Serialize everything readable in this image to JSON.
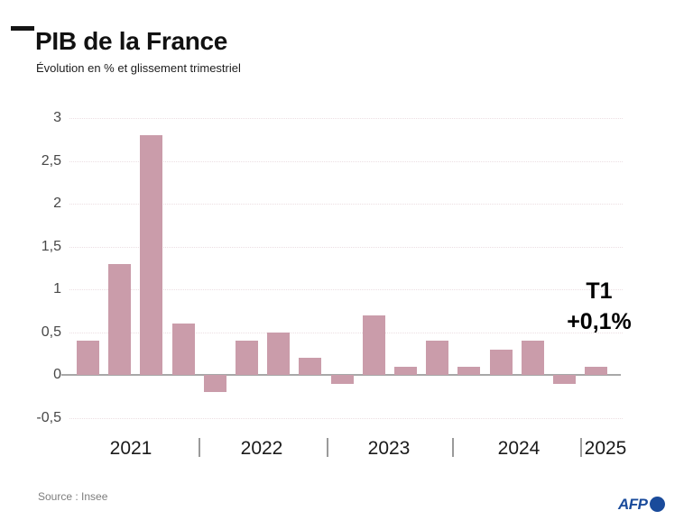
{
  "header": {
    "title": "PIB de la France",
    "subtitle": "Évolution en % et glissement trimestriel"
  },
  "annotation": {
    "line1": "T1",
    "line2": "+0,1%"
  },
  "footer": {
    "source": "Source : Insee",
    "logo_text": "AFP"
  },
  "colors": {
    "bar": "#ca9caa",
    "grid": "#ecdee2",
    "axis": "#a8a8a8",
    "afp_blue": "#1a4b9b"
  },
  "chart_data": {
    "type": "bar",
    "title": "PIB de la France",
    "subtitle": "Évolution en % et glissement trimestriel",
    "unit": "%",
    "x": [
      "2021 T1",
      "2021 T2",
      "2021 T3",
      "2021 T4",
      "2022 T1",
      "2022 T2",
      "2022 T3",
      "2022 T4",
      "2023 T1",
      "2023 T2",
      "2023 T3",
      "2023 T4",
      "2024 T1",
      "2024 T2",
      "2024 T3",
      "2024 T4",
      "2025 T1"
    ],
    "values": [
      0.4,
      1.3,
      2.8,
      0.6,
      -0.2,
      0.4,
      0.5,
      0.2,
      -0.1,
      0.7,
      0.1,
      0.4,
      0.1,
      0.3,
      0.4,
      -0.1,
      0.1
    ],
    "year_labels": [
      "2021",
      "2022",
      "2023",
      "2024",
      "2025"
    ],
    "y_ticks": [
      {
        "label": "3",
        "value": 3
      },
      {
        "label": "2,5",
        "value": 2.5
      },
      {
        "label": "2",
        "value": 2
      },
      {
        "label": "1,5",
        "value": 1.5
      },
      {
        "label": "1",
        "value": 1
      },
      {
        "label": "0,5",
        "value": 0.5
      },
      {
        "label": "0",
        "value": 0
      },
      {
        "label": "-0,5",
        "value": -0.5
      }
    ],
    "ylim": [
      -0.5,
      3
    ],
    "grid": true,
    "legend": false,
    "annotation": {
      "text": "T1 +0,1%",
      "target": "2025 T1"
    }
  }
}
